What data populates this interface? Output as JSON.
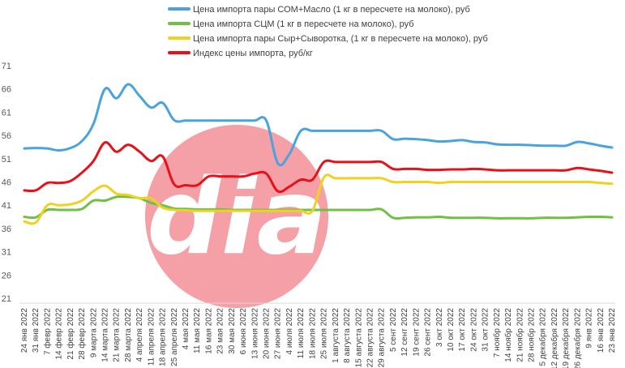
{
  "chart_data": {
    "type": "line",
    "title": "",
    "xlabel": "",
    "ylabel": "",
    "ylim": [
      21,
      71
    ],
    "y_ticks": [
      21,
      26,
      31,
      36,
      41,
      46,
      51,
      56,
      61,
      66,
      71
    ],
    "grid": false,
    "legend_position": "top-left",
    "categories": [
      "24 янв 2022",
      "31 янв 2022",
      "7 февр 2022",
      "14 февр 2022",
      "21 февр 2022",
      "28 февр 2022",
      "9 марта 2022",
      "14 марта 2022",
      "21 марта 2022",
      "28 марта 2022",
      "4 апреля 2022",
      "11 апреля 2022",
      "18 апреля 2022",
      "25 апреля 2022",
      "4 мая 2022",
      "11 мая 2022",
      "16 мая 2022",
      "23 мая 2022",
      "30 мая 2022",
      "6 июня 2022",
      "13 июня 2022",
      "20 июня 2022",
      "27 июня 2022",
      "4 июля 2022",
      "11 июля 2022",
      "18 июля 2022",
      "25 июля 2022",
      "1 августа 2022",
      "8 августа 2022",
      "15 августа 2022",
      "22 августа 2022",
      "29 августа 2022",
      "5 сент 2022",
      "12 сент 2022",
      "19 сент 2022",
      "26 сент 2022",
      "3 окт 2022",
      "10 окт 2022",
      "17 окт 2022",
      "24 окт 2022",
      "31 окт 2022",
      "7 ноябр 2022",
      "14 ноябр 2022",
      "21 ноябр 2022",
      "28 ноябр 2022",
      "5 декабря 2022",
      "12 декабря 2022",
      "19 декабря 2022",
      "26 декабря 2022",
      "9 янв 2022",
      "16 янв 2022",
      "23 янв 2022"
    ],
    "series": [
      {
        "name": "Цена импорта пары СОМ+Масло  (1 кг в пересчете на молоко), руб",
        "color": "#4aa3df",
        "values": [
          53.2,
          53.3,
          53.2,
          52.8,
          53.3,
          54.8,
          58.5,
          66.0,
          64.0,
          67.0,
          64.5,
          62.0,
          63.0,
          59.3,
          59.2,
          59.2,
          59.2,
          59.2,
          59.2,
          59.2,
          59.2,
          59.2,
          50.0,
          52.0,
          57.0,
          57.0,
          57.0,
          57.0,
          57.0,
          57.0,
          57.0,
          57.0,
          55.2,
          55.3,
          55.2,
          55.0,
          54.7,
          54.8,
          55.0,
          54.6,
          54.5,
          54.1,
          54.0,
          54.0,
          53.9,
          53.8,
          53.8,
          53.8,
          54.6,
          54.3,
          53.8,
          53.4
        ]
      },
      {
        "name": "Цена импорта СЦМ  (1 кг в пересчете на молоко), руб",
        "color": "#70c044",
        "values": [
          38.5,
          38.4,
          40.0,
          40.0,
          40.0,
          40.2,
          42.0,
          42.0,
          42.8,
          42.8,
          42.5,
          41.5,
          41.0,
          40.3,
          40.2,
          40.1,
          40.1,
          40.1,
          40.0,
          40.0,
          40.0,
          40.0,
          40.0,
          40.0,
          40.0,
          40.0,
          40.0,
          40.0,
          40.0,
          40.0,
          40.0,
          40.1,
          38.3,
          38.3,
          38.4,
          38.4,
          38.5,
          38.3,
          38.3,
          38.3,
          38.3,
          38.2,
          38.2,
          38.2,
          38.2,
          38.3,
          38.3,
          38.3,
          38.4,
          38.5,
          38.5,
          38.4
        ]
      },
      {
        "name": "Цена импорта пары Сыр+Сыворотка, (1 кг в пересчете на молоко), руб",
        "color": "#f0d020",
        "values": [
          37.5,
          37.3,
          41.0,
          41.0,
          41.2,
          42.0,
          44.0,
          45.2,
          43.5,
          43.2,
          42.5,
          42.5,
          40.5,
          40.0,
          39.9,
          39.8,
          39.8,
          39.8,
          39.8,
          39.8,
          39.8,
          39.8,
          39.8,
          39.8,
          39.8,
          39.8,
          47.0,
          46.8,
          46.8,
          46.8,
          46.8,
          46.8,
          46.0,
          46.0,
          46.0,
          46.0,
          45.8,
          46.0,
          46.0,
          46.0,
          46.0,
          46.0,
          46.0,
          46.0,
          46.0,
          46.0,
          46.0,
          46.0,
          46.0,
          46.0,
          45.8,
          45.6
        ]
      },
      {
        "name": "Индекс цены импорта, руб/кг",
        "color": "#e8111a",
        "values": [
          44.2,
          44.2,
          45.8,
          45.8,
          46.2,
          48.0,
          50.5,
          54.5,
          52.5,
          54.0,
          52.5,
          50.5,
          51.5,
          45.5,
          45.3,
          45.3,
          47.2,
          47.2,
          47.2,
          47.2,
          47.8,
          47.8,
          44.0,
          45.0,
          46.5,
          46.5,
          50.3,
          50.3,
          50.3,
          50.3,
          50.3,
          50.3,
          48.8,
          48.8,
          48.8,
          48.6,
          48.6,
          48.7,
          48.7,
          48.8,
          48.7,
          48.5,
          48.5,
          48.5,
          48.5,
          48.5,
          48.5,
          48.5,
          49.0,
          48.7,
          48.4,
          48.0
        ]
      }
    ]
  },
  "watermark": {
    "text": "dia",
    "circle_color": "#f4a0a6"
  }
}
